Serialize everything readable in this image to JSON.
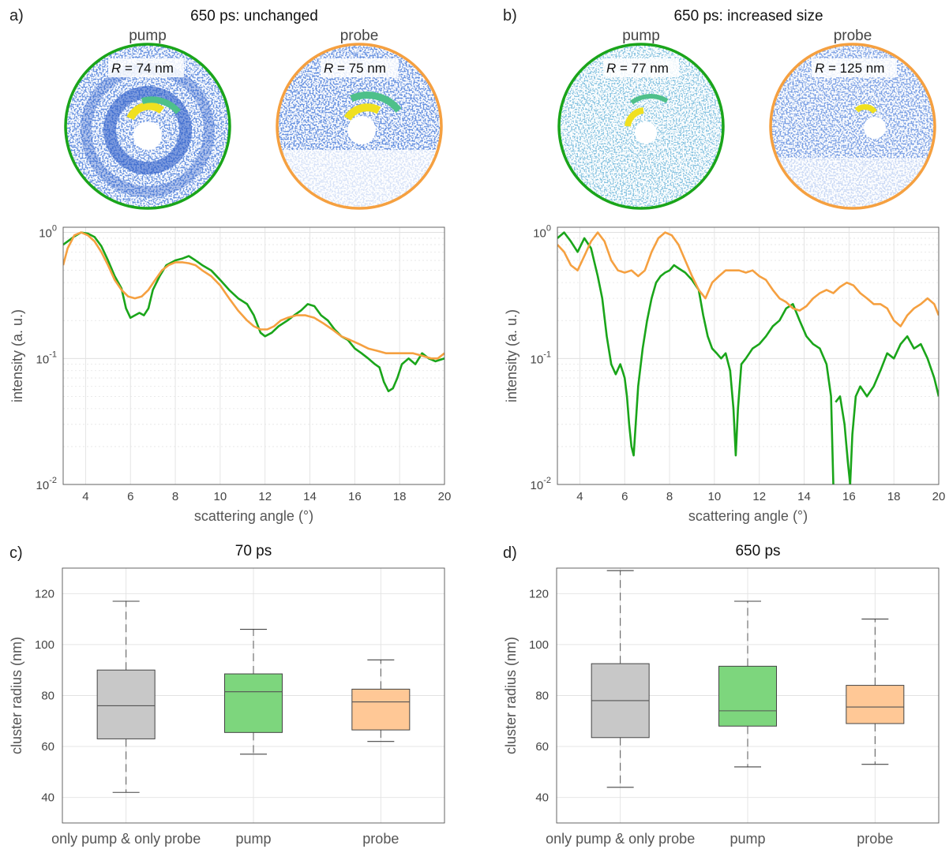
{
  "panels": {
    "a": {
      "letter": "a)",
      "title": "650 ps: unchanged",
      "pump_label": "pump",
      "probe_label": "probe",
      "pump_radius_var": "R",
      "pump_radius_value": " = 74 nm",
      "probe_radius_var": "R",
      "probe_radius_value": " = 75 nm"
    },
    "b": {
      "letter": "b)",
      "title": "650 ps: increased size",
      "pump_label": "pump",
      "probe_label": "probe",
      "pump_radius_var": "R",
      "pump_radius_value": " = 77 nm",
      "probe_radius_var": "R",
      "probe_radius_value": " = 125 nm"
    },
    "c": {
      "letter": "c)",
      "title": "70 ps"
    },
    "d": {
      "letter": "d)",
      "title": "650 ps"
    }
  },
  "colors": {
    "pump": "#1aa51a",
    "probe": "#f5a040",
    "box_gray": "#c8c8c8",
    "box_green": "#7dd67d",
    "box_orange": "#ffc896"
  },
  "chart_data": [
    {
      "id": "a",
      "type": "line",
      "xlabel": "scattering angle (°)",
      "ylabel": "intensity (a. u.)",
      "xlim": [
        3,
        20
      ],
      "ylim": [
        0.01,
        1.1
      ],
      "y_scale": "log",
      "grid": true,
      "x_ticks": [
        "4",
        "6",
        "8",
        "10",
        "12",
        "14",
        "16",
        "18",
        "20"
      ],
      "y_ticks": [
        {
          "base": "10",
          "exp": "0"
        },
        {
          "base": "10",
          "exp": "-1"
        },
        {
          "base": "10",
          "exp": "-2"
        }
      ],
      "series": [
        {
          "color": "#1aa51a",
          "x": [
            3,
            3.2,
            3.5,
            3.8,
            4.1,
            4.4,
            4.7,
            5.0,
            5.3,
            5.6,
            5.8,
            6.0,
            6.2,
            6.4,
            6.6,
            6.8,
            7.0,
            7.3,
            7.6,
            8.0,
            8.3,
            8.6,
            8.9,
            9.2,
            9.6,
            10.0,
            10.4,
            10.8,
            11.2,
            11.5,
            11.8,
            12.0,
            12.3,
            12.6,
            13.0,
            13.3,
            13.6,
            13.9,
            14.2,
            14.5,
            14.8,
            15.1,
            15.4,
            15.7,
            16.0,
            16.3,
            16.6,
            16.9,
            17.1,
            17.3,
            17.5,
            17.7,
            17.9,
            18.1,
            18.4,
            18.7,
            19.0,
            19.3,
            19.6,
            20.0
          ],
          "y": [
            0.8,
            0.85,
            0.93,
            1.0,
            0.98,
            0.92,
            0.78,
            0.6,
            0.45,
            0.36,
            0.25,
            0.21,
            0.22,
            0.23,
            0.22,
            0.25,
            0.35,
            0.45,
            0.55,
            0.6,
            0.62,
            0.65,
            0.6,
            0.55,
            0.5,
            0.42,
            0.35,
            0.3,
            0.27,
            0.22,
            0.16,
            0.15,
            0.16,
            0.18,
            0.2,
            0.22,
            0.24,
            0.27,
            0.26,
            0.22,
            0.2,
            0.17,
            0.15,
            0.14,
            0.12,
            0.11,
            0.1,
            0.09,
            0.085,
            0.065,
            0.055,
            0.058,
            0.07,
            0.09,
            0.1,
            0.09,
            0.11,
            0.1,
            0.095,
            0.1
          ]
        },
        {
          "color": "#f5a040",
          "x": [
            3,
            3.2,
            3.5,
            3.8,
            4.1,
            4.4,
            4.7,
            5.0,
            5.3,
            5.6,
            5.9,
            6.2,
            6.5,
            6.8,
            7.1,
            7.4,
            7.7,
            8.0,
            8.3,
            8.6,
            8.9,
            9.2,
            9.6,
            10.0,
            10.4,
            10.8,
            11.2,
            11.5,
            11.8,
            12.1,
            12.4,
            12.7,
            13.0,
            13.4,
            13.8,
            14.2,
            14.6,
            15.0,
            15.4,
            15.8,
            16.2,
            16.6,
            17.0,
            17.4,
            17.8,
            18.2,
            18.6,
            19.0,
            19.4,
            19.7,
            20.0
          ],
          "y": [
            0.55,
            0.75,
            0.95,
            1.0,
            0.95,
            0.85,
            0.7,
            0.55,
            0.42,
            0.35,
            0.31,
            0.3,
            0.31,
            0.35,
            0.42,
            0.5,
            0.55,
            0.58,
            0.58,
            0.57,
            0.55,
            0.5,
            0.45,
            0.38,
            0.3,
            0.24,
            0.2,
            0.18,
            0.17,
            0.17,
            0.18,
            0.2,
            0.21,
            0.22,
            0.22,
            0.21,
            0.19,
            0.17,
            0.15,
            0.14,
            0.13,
            0.12,
            0.115,
            0.11,
            0.11,
            0.11,
            0.11,
            0.105,
            0.1,
            0.1,
            0.11
          ]
        }
      ]
    },
    {
      "id": "b",
      "type": "line",
      "xlabel": "scattering angle (°)",
      "ylabel": "intensity (a. u.)",
      "xlim": [
        3,
        20
      ],
      "ylim": [
        0.01,
        1.1
      ],
      "y_scale": "log",
      "grid": true,
      "x_ticks": [
        "4",
        "6",
        "8",
        "10",
        "12",
        "14",
        "16",
        "18",
        "20"
      ],
      "y_ticks": [
        {
          "base": "10",
          "exp": "0"
        },
        {
          "base": "10",
          "exp": "-1"
        },
        {
          "base": "10",
          "exp": "-2"
        }
      ],
      "series": [
        {
          "color": "#1aa51a",
          "segments": [
            {
              "x": [
                3,
                3.3,
                3.6,
                3.9,
                4.2,
                4.5,
                4.8,
                5.0,
                5.2,
                5.4,
                5.6,
                5.8,
                5.9,
                6.0,
                6.1,
                6.2,
                6.3,
                6.4,
                6.6,
                6.8,
                7.0,
                7.2,
                7.4,
                7.6,
                7.8,
                8.0,
                8.2,
                8.4,
                8.7,
                9.0,
                9.3,
                9.5,
                9.7,
                9.9,
                10.1,
                10.3,
                10.5,
                10.7,
                10.85,
                10.95,
                11.05,
                11.2,
                11.4,
                11.7,
                12.0,
                12.3,
                12.6,
                12.9,
                13.2,
                13.5,
                13.8,
                14.1,
                14.4,
                14.7,
                15.0,
                15.2,
                15.3
              ],
              "y": [
                0.9,
                1.0,
                0.85,
                0.7,
                0.9,
                0.75,
                0.45,
                0.3,
                0.15,
                0.09,
                0.075,
                0.09,
                0.08,
                0.07,
                0.05,
                0.03,
                0.02,
                0.017,
                0.06,
                0.12,
                0.2,
                0.3,
                0.4,
                0.45,
                0.48,
                0.5,
                0.55,
                0.52,
                0.48,
                0.42,
                0.35,
                0.22,
                0.15,
                0.12,
                0.11,
                0.1,
                0.11,
                0.08,
                0.04,
                0.017,
                0.04,
                0.09,
                0.1,
                0.12,
                0.13,
                0.15,
                0.18,
                0.2,
                0.25,
                0.27,
                0.2,
                0.15,
                0.13,
                0.12,
                0.09,
                0.05,
                0.01
              ]
            },
            {
              "x": [
                15.4,
                15.6,
                15.8,
                15.95,
                16.05,
                16.15,
                16.3,
                16.5,
                16.8,
                17.1,
                17.4,
                17.7,
                18.0,
                18.3,
                18.6,
                18.9,
                19.2,
                19.5,
                19.8,
                20.0
              ],
              "y": [
                0.045,
                0.05,
                0.03,
                0.015,
                0.01,
                0.025,
                0.05,
                0.06,
                0.05,
                0.06,
                0.08,
                0.11,
                0.1,
                0.13,
                0.15,
                0.12,
                0.13,
                0.1,
                0.07,
                0.05
              ]
            }
          ]
        },
        {
          "color": "#f5a040",
          "x": [
            3,
            3.3,
            3.6,
            3.9,
            4.2,
            4.5,
            4.8,
            5.1,
            5.4,
            5.7,
            6.0,
            6.3,
            6.6,
            6.9,
            7.2,
            7.5,
            7.8,
            8.1,
            8.4,
            8.7,
            9.0,
            9.3,
            9.6,
            9.9,
            10.2,
            10.5,
            10.8,
            11.1,
            11.4,
            11.7,
            12.0,
            12.3,
            12.6,
            12.9,
            13.2,
            13.5,
            13.8,
            14.1,
            14.4,
            14.7,
            15.0,
            15.3,
            15.6,
            15.9,
            16.2,
            16.5,
            16.8,
            17.1,
            17.4,
            17.7,
            18.0,
            18.3,
            18.6,
            18.9,
            19.2,
            19.5,
            19.8,
            20.0
          ],
          "y": [
            0.8,
            0.7,
            0.55,
            0.5,
            0.65,
            0.85,
            1.0,
            0.85,
            0.6,
            0.5,
            0.48,
            0.5,
            0.45,
            0.5,
            0.7,
            0.9,
            1.0,
            0.95,
            0.8,
            0.6,
            0.45,
            0.35,
            0.3,
            0.4,
            0.45,
            0.5,
            0.5,
            0.5,
            0.48,
            0.5,
            0.45,
            0.42,
            0.35,
            0.3,
            0.28,
            0.25,
            0.24,
            0.26,
            0.3,
            0.33,
            0.35,
            0.33,
            0.37,
            0.4,
            0.38,
            0.33,
            0.3,
            0.27,
            0.27,
            0.25,
            0.2,
            0.18,
            0.22,
            0.25,
            0.27,
            0.3,
            0.27,
            0.22
          ]
        }
      ]
    },
    {
      "id": "c",
      "type": "box",
      "title": "70 ps",
      "ylabel": "cluster radius (nm)",
      "ylim": [
        30,
        130
      ],
      "y_ticks": [
        40,
        60,
        80,
        100,
        120
      ],
      "categories": [
        "only pump & only probe",
        "pump",
        "probe"
      ],
      "boxes": [
        {
          "min": 42,
          "q1": 63,
          "median": 76,
          "q3": 90,
          "max": 117,
          "color": "#c8c8c8"
        },
        {
          "min": 57,
          "q1": 65.5,
          "median": 81.5,
          "q3": 88.5,
          "max": 106,
          "color": "#7dd67d"
        },
        {
          "min": 62,
          "q1": 66.5,
          "median": 77.5,
          "q3": 82.5,
          "max": 94,
          "color": "#ffc896"
        }
      ]
    },
    {
      "id": "d",
      "type": "box",
      "title": "650 ps",
      "ylabel": "cluster radius (nm)",
      "ylim": [
        30,
        130
      ],
      "y_ticks": [
        40,
        60,
        80,
        100,
        120
      ],
      "categories": [
        "only pump & only probe",
        "pump",
        "probe"
      ],
      "boxes": [
        {
          "min": 44,
          "q1": 63.5,
          "median": 78,
          "q3": 92.5,
          "max": 129,
          "color": "#c8c8c8"
        },
        {
          "min": 52,
          "q1": 68,
          "median": 74,
          "q3": 91.5,
          "max": 117,
          "color": "#7dd67d"
        },
        {
          "min": 53,
          "q1": 69,
          "median": 75.5,
          "q3": 84,
          "max": 110,
          "color": "#ffc896"
        }
      ]
    }
  ]
}
